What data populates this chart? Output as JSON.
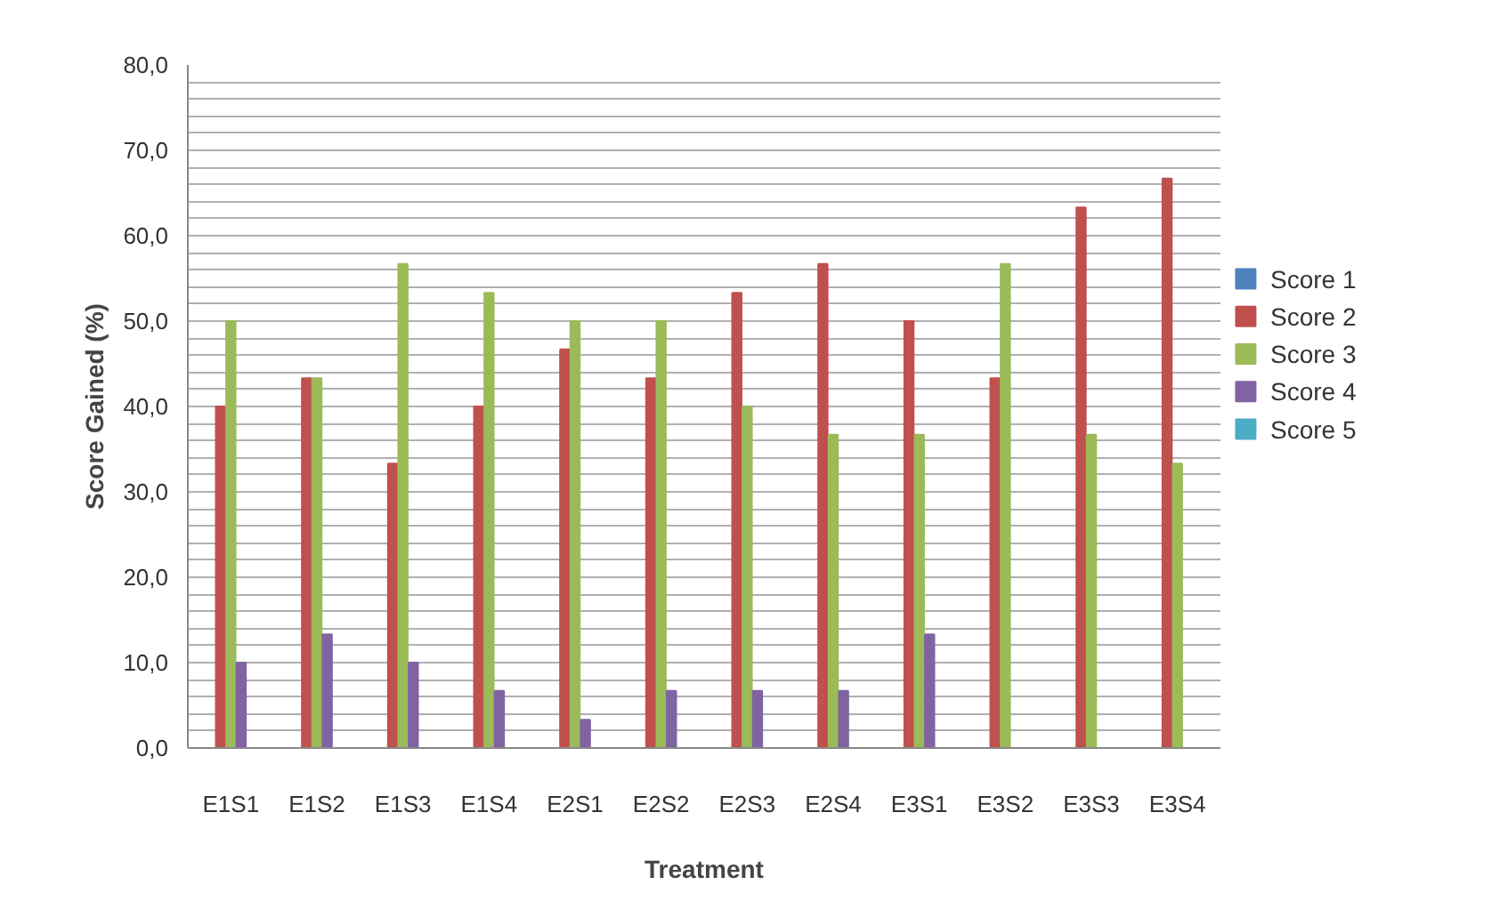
{
  "chart_data": {
    "type": "bar",
    "xlabel": "Treatment",
    "ylabel": "Score Gained (%)",
    "categories": [
      "E1S1",
      "E1S2",
      "E1S3",
      "E1S4",
      "E2S1",
      "E2S2",
      "E2S3",
      "E2S4",
      "E3S1",
      "E3S2",
      "E3S3",
      "E3S4"
    ],
    "series": [
      {
        "name": "Score 1",
        "color": "#4f81bd",
        "values": [
          null,
          null,
          null,
          null,
          null,
          null,
          null,
          null,
          null,
          null,
          null,
          null
        ]
      },
      {
        "name": "Score 2",
        "color": "#c0504d",
        "values": [
          40,
          43.3,
          33.3,
          40,
          46.7,
          43.3,
          53.3,
          56.7,
          50,
          43.3,
          63.3,
          66.7
        ]
      },
      {
        "name": "Score 3",
        "color": "#9bbb59",
        "values": [
          50,
          43.3,
          56.7,
          53.3,
          50,
          50,
          40,
          36.7,
          36.7,
          56.7,
          36.7,
          33.3
        ]
      },
      {
        "name": "Score 4",
        "color": "#8064a2",
        "values": [
          10,
          13.3,
          10,
          6.7,
          3.3,
          6.7,
          6.7,
          6.7,
          13.3,
          null,
          null,
          null
        ]
      },
      {
        "name": "Score 5",
        "color": "#4bacc6",
        "values": [
          null,
          null,
          null,
          null,
          null,
          null,
          null,
          null,
          null,
          null,
          null,
          null
        ]
      }
    ],
    "ylim": [
      0,
      80
    ],
    "yticks": [
      {
        "value": 0,
        "label": "0,0"
      },
      {
        "value": 2,
        "label": null
      },
      {
        "value": 4,
        "label": null
      },
      {
        "value": 6,
        "label": null
      },
      {
        "value": 8,
        "label": null
      },
      {
        "value": 10,
        "label": "10,0"
      },
      {
        "value": 12,
        "label": null
      },
      {
        "value": 14,
        "label": null
      },
      {
        "value": 16,
        "label": null
      },
      {
        "value": 18,
        "label": null
      },
      {
        "value": 20,
        "label": "20,0"
      },
      {
        "value": 22,
        "label": null
      },
      {
        "value": 24,
        "label": null
      },
      {
        "value": 26,
        "label": null
      },
      {
        "value": 28,
        "label": null
      },
      {
        "value": 30,
        "label": "30,0"
      },
      {
        "value": 32,
        "label": null
      },
      {
        "value": 34,
        "label": null
      },
      {
        "value": 36,
        "label": null
      },
      {
        "value": 38,
        "label": null
      },
      {
        "value": 40,
        "label": "40,0"
      },
      {
        "value": 42,
        "label": null
      },
      {
        "value": 44,
        "label": null
      },
      {
        "value": 46,
        "label": null
      },
      {
        "value": 48,
        "label": null
      },
      {
        "value": 50,
        "label": "50,0"
      },
      {
        "value": 52,
        "label": null
      },
      {
        "value": 54,
        "label": null
      },
      {
        "value": 56,
        "label": null
      },
      {
        "value": 58,
        "label": null
      },
      {
        "value": 60,
        "label": "60,0"
      },
      {
        "value": 62,
        "label": null
      },
      {
        "value": 64,
        "label": null
      },
      {
        "value": 66,
        "label": null
      },
      {
        "value": 68,
        "label": null
      },
      {
        "value": 70,
        "label": "70,0"
      },
      {
        "value": 72,
        "label": null
      },
      {
        "value": 74,
        "label": null
      },
      {
        "value": 76,
        "label": null
      },
      {
        "value": 78,
        "label": null
      },
      {
        "value": 80,
        "label": "80,0"
      }
    ],
    "grid": "y",
    "legend": "right"
  }
}
